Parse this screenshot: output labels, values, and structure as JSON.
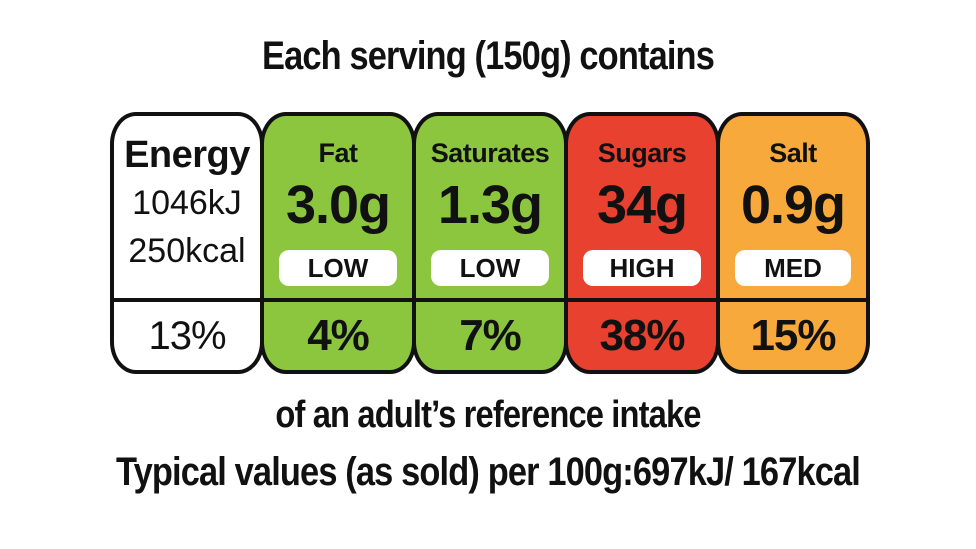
{
  "title": "Each serving (150g) contains",
  "energy": {
    "name": "Energy",
    "kj": "1046kJ",
    "kcal": "250kcal",
    "percent": "13%",
    "color": "#ffffff"
  },
  "nutrients": [
    {
      "name": "Fat",
      "amount": "3.0g",
      "level": "LOW",
      "percent": "4%",
      "color": "#8cc63f"
    },
    {
      "name": "Saturates",
      "amount": "1.3g",
      "level": "LOW",
      "percent": "7%",
      "color": "#8cc63f"
    },
    {
      "name": "Sugars",
      "amount": "34g",
      "level": "HIGH",
      "percent": "38%",
      "color": "#e8412f"
    },
    {
      "name": "Salt",
      "amount": "0.9g",
      "level": "MED",
      "percent": "15%",
      "color": "#f7a93b"
    }
  ],
  "intake_note": "of an adult’s reference intake",
  "typical_values": "Typical values (as sold) per 100g:697kJ/ 167kcal"
}
